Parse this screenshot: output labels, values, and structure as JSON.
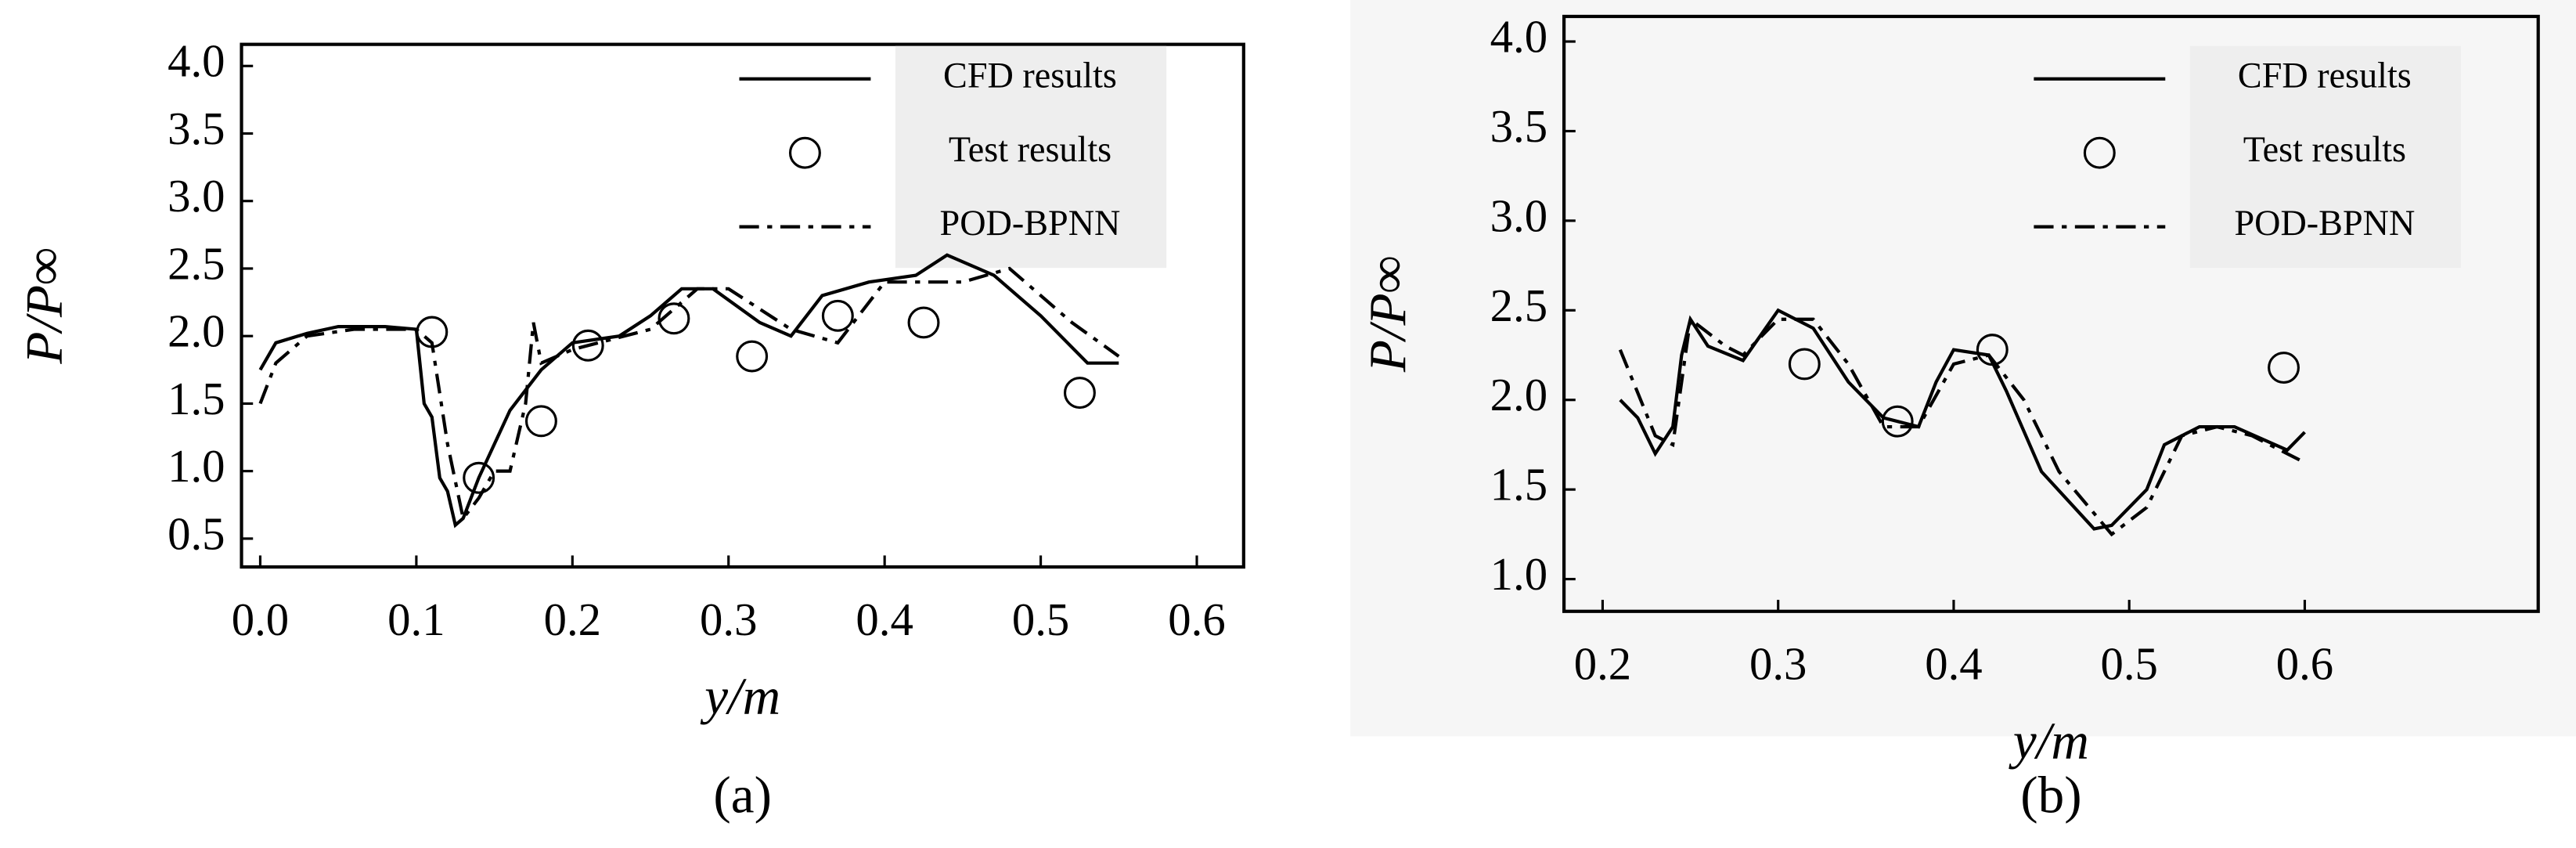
{
  "chart_data": [
    {
      "type": "line",
      "label": "(a)",
      "x_label": "y/m",
      "y_label": "P/P∞",
      "xlim": [
        -0.012,
        0.63
      ],
      "ylim": [
        0.29,
        4.16
      ],
      "xticks": [
        {
          "value": 0.0,
          "label": "0.0"
        },
        0.1,
        0.2,
        0.3,
        0.4,
        0.5,
        0.6
      ],
      "yticks": [
        0.5,
        {
          "value": 1.0,
          "label": "1.0"
        },
        1.5,
        {
          "value": 2.0,
          "label": "2.0"
        },
        2.5,
        {
          "value": 3.0,
          "label": "3.0"
        },
        3.5,
        {
          "value": 4.0,
          "label": "4.0"
        }
      ],
      "legend": "upper right",
      "series": [
        {
          "name": "CFD results",
          "color": "#000000",
          "style": "solid",
          "x": [
            0.0,
            0.01,
            0.03,
            0.05,
            0.08,
            0.1,
            0.105,
            0.11,
            0.115,
            0.12,
            0.125,
            0.13,
            0.14,
            0.15,
            0.16,
            0.17,
            0.18,
            0.2,
            0.23,
            0.25,
            0.27,
            0.29,
            0.32,
            0.34,
            0.36,
            0.39,
            0.42,
            0.44,
            0.47,
            0.5,
            0.53,
            0.55
          ],
          "values": [
            1.75,
            1.95,
            2.02,
            2.07,
            2.07,
            2.05,
            1.5,
            1.4,
            0.95,
            0.85,
            0.6,
            0.65,
            0.95,
            1.2,
            1.45,
            1.6,
            1.75,
            1.95,
            2.0,
            2.15,
            2.35,
            2.35,
            2.1,
            2.0,
            2.3,
            2.4,
            2.45,
            2.6,
            2.45,
            2.15,
            1.8,
            1.8
          ]
        },
        {
          "name": "Test results",
          "color": "#000000",
          "style": "circle",
          "x": [
            0.11,
            0.14,
            0.18,
            0.21,
            0.265,
            0.315,
            0.37,
            0.425,
            0.525
          ],
          "values": [
            2.03,
            0.95,
            1.37,
            1.93,
            2.13,
            1.85,
            2.15,
            2.1,
            1.58
          ]
        },
        {
          "name": "POD-BPNN",
          "color": "#000000",
          "style": "dashdot",
          "x": [
            0.0,
            0.01,
            0.03,
            0.06,
            0.1,
            0.11,
            0.12,
            0.13,
            0.14,
            0.15,
            0.16,
            0.17,
            0.175,
            0.18,
            0.2,
            0.25,
            0.28,
            0.3,
            0.34,
            0.37,
            0.4,
            0.45,
            0.48,
            0.52,
            0.55
          ],
          "values": [
            1.5,
            1.8,
            2.0,
            2.05,
            2.05,
            1.95,
            1.2,
            0.65,
            0.8,
            1.0,
            1.0,
            1.5,
            2.1,
            1.8,
            1.9,
            2.05,
            2.35,
            2.35,
            2.05,
            1.95,
            2.4,
            2.4,
            2.5,
            2.1,
            1.85
          ]
        }
      ]
    },
    {
      "type": "line",
      "label": "(b)",
      "x_label": "y/m",
      "y_label": "P/P∞",
      "xlim": [
        0.178,
        0.733
      ],
      "ylim": [
        0.82,
        4.14
      ],
      "xticks": [
        0.2,
        0.3,
        0.4,
        0.5,
        0.6
      ],
      "yticks": [
        {
          "value": 1.0,
          "label": "1.0"
        },
        1.5,
        {
          "value": 2.0,
          "label": "2.0"
        },
        2.5,
        {
          "value": 3.0,
          "label": "3.0"
        },
        3.5,
        {
          "value": 4.0,
          "label": "4.0"
        }
      ],
      "legend": "upper right",
      "series": [
        {
          "name": "CFD results",
          "color": "#000000",
          "style": "solid",
          "x": [
            0.21,
            0.22,
            0.23,
            0.24,
            0.245,
            0.25,
            0.26,
            0.28,
            0.3,
            0.32,
            0.34,
            0.36,
            0.38,
            0.39,
            0.4,
            0.42,
            0.43,
            0.45,
            0.48,
            0.49,
            0.51,
            0.52,
            0.54,
            0.56,
            0.59,
            0.6
          ],
          "values": [
            2.0,
            1.9,
            1.7,
            1.85,
            2.25,
            2.45,
            2.3,
            2.22,
            2.5,
            2.4,
            2.1,
            1.9,
            1.85,
            2.1,
            2.28,
            2.25,
            2.05,
            1.6,
            1.28,
            1.3,
            1.5,
            1.75,
            1.85,
            1.85,
            1.72,
            1.82
          ]
        },
        {
          "name": "Test results",
          "color": "#000000",
          "style": "circle",
          "x": [
            0.315,
            0.368,
            0.422,
            0.588
          ],
          "values": [
            2.2,
            1.88,
            2.28,
            2.18
          ]
        },
        {
          "name": "POD-BPNN",
          "color": "#000000",
          "style": "dashdot",
          "x": [
            0.21,
            0.23,
            0.24,
            0.25,
            0.27,
            0.28,
            0.3,
            0.32,
            0.34,
            0.36,
            0.38,
            0.4,
            0.42,
            0.44,
            0.46,
            0.49,
            0.51,
            0.53,
            0.55,
            0.57,
            0.6
          ],
          "values": [
            2.28,
            1.8,
            1.75,
            2.45,
            2.3,
            2.25,
            2.45,
            2.45,
            2.2,
            1.85,
            1.85,
            2.2,
            2.25,
            2.0,
            1.6,
            1.25,
            1.4,
            1.8,
            1.85,
            1.8,
            1.65
          ]
        }
      ]
    }
  ]
}
